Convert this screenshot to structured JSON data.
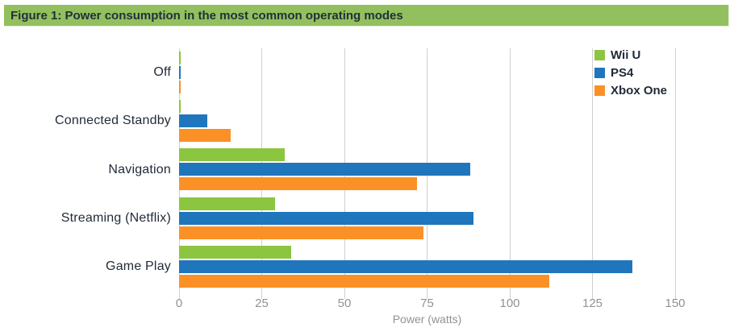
{
  "figure": {
    "title": "Figure 1: Power consumption in the most common operating modes"
  },
  "colors": {
    "header_bg": "#92C05E",
    "header_text": "#232F3A",
    "category_text": "#1F2A37",
    "tick_text": "#8E9396",
    "gridline": "#CFCFCF"
  },
  "chart_data": {
    "type": "bar",
    "orientation": "horizontal",
    "title": "Figure 1: Power consumption in the most common operating modes",
    "categories": [
      "Off",
      "Connected Standby",
      "Navigation",
      "Streaming (Netflix)",
      "Game Play"
    ],
    "series": [
      {
        "name": "Wii U",
        "color": "#8CC540",
        "values": [
          0.4,
          0.4,
          32,
          29,
          34
        ]
      },
      {
        "name": "PS4",
        "color": "#1F76BC",
        "values": [
          0.5,
          8.5,
          88,
          89,
          137
        ]
      },
      {
        "name": "Xbox One",
        "color": "#FB9126",
        "values": [
          0.5,
          15.7,
          72,
          74,
          112
        ]
      }
    ],
    "xlabel": "Power (watts)",
    "xlim": [
      0,
      150
    ],
    "xticks": [
      0,
      25,
      50,
      75,
      100,
      125,
      150
    ],
    "grid": "vertical",
    "legend_position": "top-right"
  }
}
